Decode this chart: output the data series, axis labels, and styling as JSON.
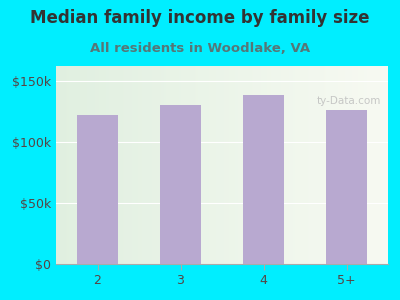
{
  "title": "Median family income by family size",
  "subtitle": "All residents in Woodlake, VA",
  "categories": [
    "2",
    "3",
    "4",
    "5+"
  ],
  "values": [
    122000,
    130000,
    138000,
    126000
  ],
  "bar_color": "#b8a9d0",
  "background_outer": "#00eeff",
  "title_color": "#333333",
  "subtitle_color": "#557777",
  "tick_label_color": "#554444",
  "ytick_labels": [
    "$0",
    "$50k",
    "$100k",
    "$150k"
  ],
  "ytick_values": [
    0,
    50000,
    100000,
    150000
  ],
  "ylim": [
    0,
    162000
  ],
  "title_fontsize": 12,
  "subtitle_fontsize": 9.5,
  "tick_fontsize": 9,
  "watermark": "ty-Data.com",
  "watermark_color": "#bbbbbb"
}
